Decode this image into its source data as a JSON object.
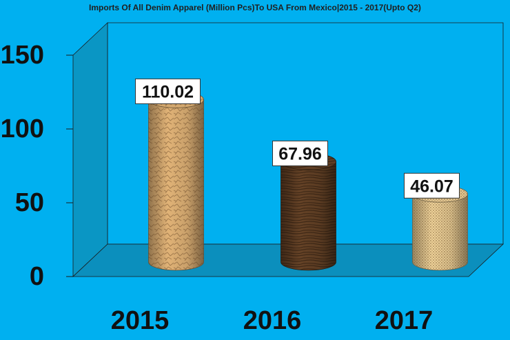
{
  "chart_data": {
    "type": "bar",
    "title": "Imports Of All Denim Apparel (Million Pcs)To USA From Mexico|2015 - 2017(Upto Q2)",
    "xlabel": "",
    "ylabel": "",
    "categories": [
      "2015",
      "2016",
      "2017"
    ],
    "values": [
      110.02,
      67.96,
      46.07
    ],
    "data_labels": [
      "110.02",
      "67.96",
      "46.07"
    ],
    "yticks": [
      0,
      50,
      100,
      150
    ],
    "ytick_labels": [
      "0",
      "50",
      "100",
      "150"
    ],
    "ylim": [
      0,
      150
    ],
    "grid": false,
    "legend": "none",
    "style": "3d-cylinder",
    "colors": {
      "background": "#00b0f0",
      "back_wall": "#00b0f0",
      "side_wall": "#0a96c4",
      "floor": "#0b8fbd",
      "bars": [
        "#c9a06a",
        "#5a3b22",
        "#d7bd8a"
      ]
    }
  }
}
